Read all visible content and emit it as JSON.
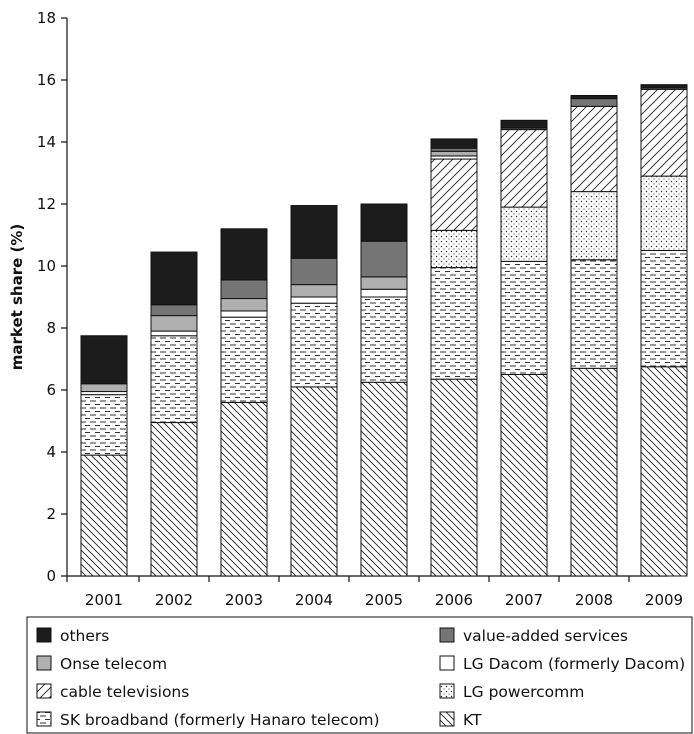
{
  "chart_data": {
    "type": "bar",
    "stacked": true,
    "title": "",
    "xlabel": "",
    "ylabel": "market share (%)",
    "ylim": [
      0,
      18
    ],
    "yticks": [
      0,
      2,
      4,
      6,
      8,
      10,
      12,
      14,
      16,
      18
    ],
    "grid": false,
    "legend_position": "bottom",
    "categories": [
      "2001",
      "2002",
      "2003",
      "2004",
      "2005",
      "2006",
      "2007",
      "2008",
      "2009"
    ],
    "series": [
      {
        "name": "KT",
        "pattern": "diagonal-back-dense",
        "values": [
          3.9,
          4.95,
          5.6,
          6.1,
          6.25,
          6.35,
          6.5,
          6.7,
          6.75
        ]
      },
      {
        "name": "SK broadband (formerly Hanaro telecom)",
        "pattern": "horizontal-dashes",
        "values": [
          1.95,
          2.8,
          2.75,
          2.7,
          2.75,
          3.6,
          3.65,
          3.5,
          3.75
        ]
      },
      {
        "name": "LG powercomm",
        "pattern": "dots",
        "values": [
          0,
          0,
          0,
          0,
          0,
          1.2,
          1.75,
          2.2,
          2.4
        ]
      },
      {
        "name": "cable televisions",
        "pattern": "diagonal-forward",
        "values": [
          0,
          0,
          0,
          0,
          0,
          2.3,
          2.5,
          2.75,
          2.8
        ]
      },
      {
        "name": "LG Dacom (formerly Dacom)",
        "pattern": "none",
        "values": [
          0.1,
          0.15,
          0.2,
          0.2,
          0.25,
          0.1,
          0,
          0,
          0
        ]
      },
      {
        "name": "Onse telecom",
        "pattern": "light-gray",
        "color": "#b0b0b0",
        "values": [
          0.25,
          0.5,
          0.4,
          0.4,
          0.4,
          0.15,
          0,
          0,
          0
        ]
      },
      {
        "name": "value-added services",
        "pattern": "dark-gray",
        "color": "#757575",
        "values": [
          0,
          0.35,
          0.6,
          0.85,
          1.15,
          0.1,
          0.05,
          0.25,
          0.05
        ]
      },
      {
        "name": "others",
        "pattern": "black",
        "color": "#1c1c1c",
        "values": [
          1.55,
          1.7,
          1.65,
          1.7,
          1.2,
          0.3,
          0.25,
          0.1,
          0.1
        ]
      }
    ],
    "legend_order": [
      "others",
      "value-added services",
      "Onse telecom",
      "LG Dacom (formerly Dacom)",
      "cable televisions",
      "LG powercomm",
      "SK broadband (formerly Hanaro telecom)",
      "KT"
    ]
  }
}
